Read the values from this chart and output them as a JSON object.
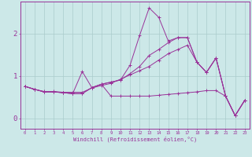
{
  "xlabel": "Windchill (Refroidissement éolien,°C)",
  "bg_color": "#cce8e8",
  "grid_color": "#aacccc",
  "line_color": "#993399",
  "x_ticks": [
    0,
    1,
    2,
    3,
    4,
    5,
    6,
    7,
    8,
    9,
    10,
    11,
    12,
    13,
    14,
    15,
    16,
    17,
    18,
    19,
    20,
    21,
    22,
    23
  ],
  "y_ticks": [
    0,
    1,
    2
  ],
  "ylim": [
    -0.25,
    2.75
  ],
  "xlim": [
    -0.5,
    23.5
  ],
  "series": [
    [
      0.75,
      0.68,
      0.62,
      0.62,
      0.6,
      0.58,
      1.1,
      0.72,
      0.8,
      0.85,
      0.9,
      1.25,
      1.95,
      2.6,
      2.38,
      1.82,
      1.9,
      1.9,
      1.32,
      1.08,
      1.42,
      0.52,
      0.06,
      0.42
    ],
    [
      0.75,
      0.68,
      0.62,
      0.62,
      0.6,
      0.58,
      0.58,
      0.72,
      0.8,
      0.85,
      0.9,
      1.05,
      1.22,
      1.48,
      1.62,
      1.78,
      1.9,
      1.9,
      1.32,
      1.08,
      1.42,
      0.52,
      0.06,
      0.42
    ],
    [
      0.75,
      0.68,
      0.62,
      0.62,
      0.6,
      0.58,
      0.58,
      0.72,
      0.8,
      0.52,
      0.52,
      0.52,
      0.52,
      0.52,
      0.54,
      0.56,
      0.58,
      0.6,
      0.62,
      0.65,
      0.65,
      0.52,
      0.06,
      0.42
    ],
    [
      0.75,
      0.68,
      0.63,
      0.63,
      0.61,
      0.61,
      0.61,
      0.71,
      0.77,
      0.82,
      0.92,
      1.02,
      1.12,
      1.22,
      1.37,
      1.52,
      1.62,
      1.72,
      1.32,
      1.08,
      1.42,
      0.52,
      0.06,
      0.42
    ]
  ]
}
